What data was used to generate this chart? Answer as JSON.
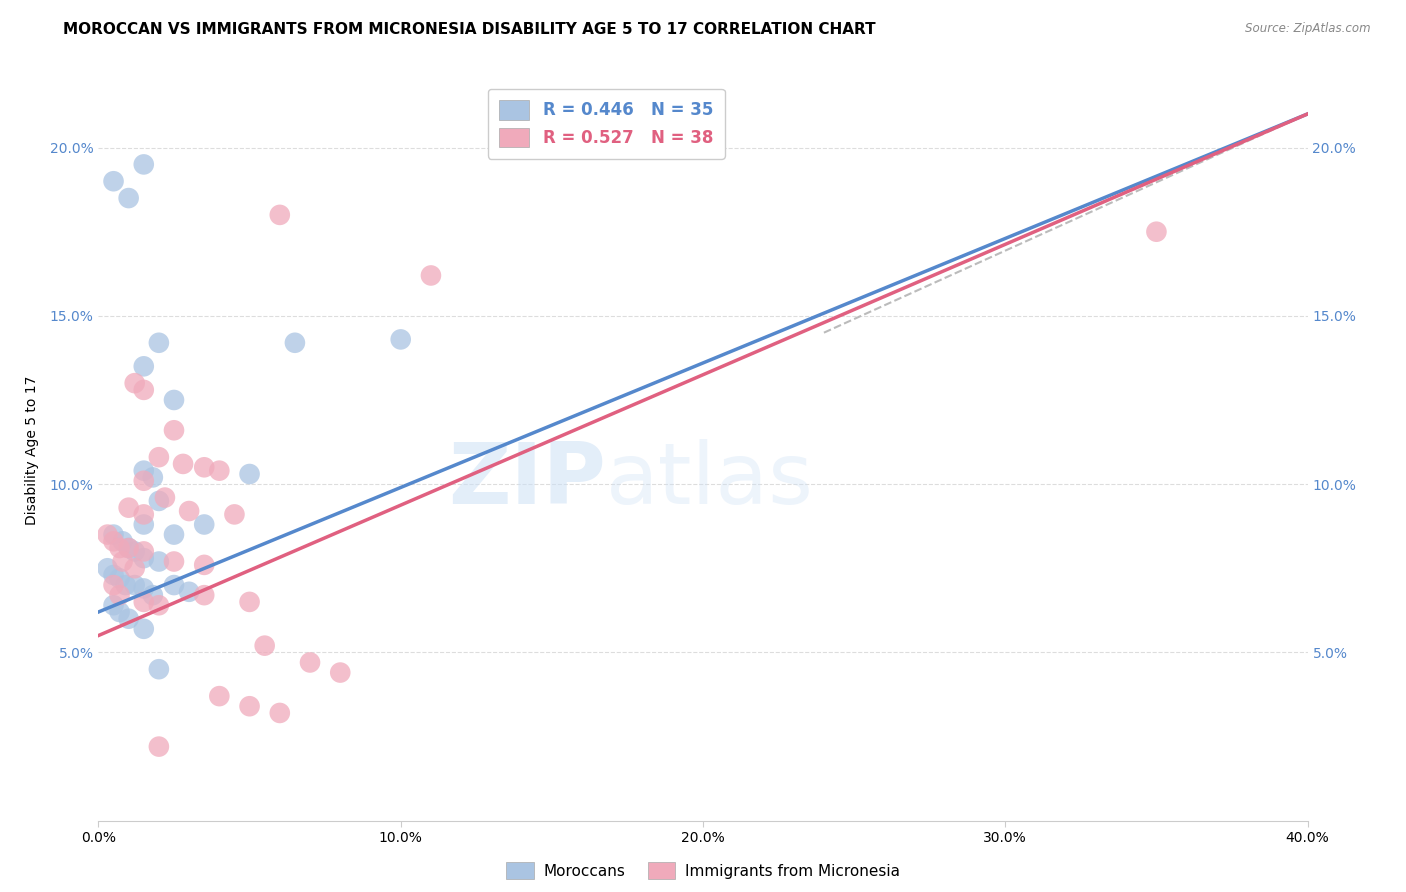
{
  "title": "MOROCCAN VS IMMIGRANTS FROM MICRONESIA DISABILITY AGE 5 TO 17 CORRELATION CHART",
  "source": "Source: ZipAtlas.com",
  "ylabel": "Disability Age 5 to 17",
  "watermark": "ZIPatlas",
  "blue_R": 0.446,
  "blue_N": 35,
  "pink_R": 0.527,
  "pink_N": 38,
  "blue_color": "#aac4e2",
  "pink_color": "#f0aabb",
  "blue_line_color": "#5588cc",
  "pink_line_color": "#e06080",
  "dashed_line_color": "#bbbbbb",
  "blue_line_x0": 0.0,
  "blue_line_y0": 6.2,
  "blue_line_x1": 40.0,
  "blue_line_y1": 21.0,
  "pink_line_x0": 0.0,
  "pink_line_y0": 5.5,
  "pink_line_x1": 40.0,
  "pink_line_y1": 21.0,
  "dash_line_x0": 24.0,
  "dash_line_y0": 14.5,
  "dash_line_x1": 40.0,
  "dash_line_y1": 21.0,
  "blue_points": [
    [
      0.5,
      19.0
    ],
    [
      1.5,
      19.5
    ],
    [
      1.0,
      18.5
    ],
    [
      2.0,
      14.2
    ],
    [
      1.5,
      13.5
    ],
    [
      10.0,
      14.3
    ],
    [
      6.5,
      14.2
    ],
    [
      2.5,
      12.5
    ],
    [
      1.5,
      10.4
    ],
    [
      1.8,
      10.2
    ],
    [
      5.0,
      10.3
    ],
    [
      2.0,
      9.5
    ],
    [
      1.5,
      8.8
    ],
    [
      2.5,
      8.5
    ],
    [
      3.5,
      8.8
    ],
    [
      0.5,
      8.5
    ],
    [
      0.8,
      8.3
    ],
    [
      1.0,
      8.1
    ],
    [
      1.2,
      8.0
    ],
    [
      1.5,
      7.8
    ],
    [
      2.0,
      7.7
    ],
    [
      0.3,
      7.5
    ],
    [
      0.5,
      7.3
    ],
    [
      0.7,
      7.2
    ],
    [
      0.9,
      7.0
    ],
    [
      1.2,
      7.0
    ],
    [
      1.5,
      6.9
    ],
    [
      1.8,
      6.7
    ],
    [
      2.5,
      7.0
    ],
    [
      3.0,
      6.8
    ],
    [
      0.5,
      6.4
    ],
    [
      0.7,
      6.2
    ],
    [
      1.0,
      6.0
    ],
    [
      1.5,
      5.7
    ],
    [
      2.0,
      4.5
    ]
  ],
  "pink_points": [
    [
      6.0,
      18.0
    ],
    [
      35.0,
      17.5
    ],
    [
      11.0,
      16.2
    ],
    [
      1.2,
      13.0
    ],
    [
      1.5,
      12.8
    ],
    [
      2.5,
      11.6
    ],
    [
      2.0,
      10.8
    ],
    [
      2.8,
      10.6
    ],
    [
      3.5,
      10.5
    ],
    [
      4.0,
      10.4
    ],
    [
      1.5,
      10.1
    ],
    [
      2.2,
      9.6
    ],
    [
      1.0,
      9.3
    ],
    [
      1.5,
      9.1
    ],
    [
      3.0,
      9.2
    ],
    [
      4.5,
      9.1
    ],
    [
      0.3,
      8.5
    ],
    [
      0.5,
      8.3
    ],
    [
      0.7,
      8.1
    ],
    [
      1.0,
      8.1
    ],
    [
      1.5,
      8.0
    ],
    [
      0.8,
      7.7
    ],
    [
      1.2,
      7.5
    ],
    [
      2.5,
      7.7
    ],
    [
      3.5,
      7.6
    ],
    [
      0.5,
      7.0
    ],
    [
      0.7,
      6.7
    ],
    [
      1.5,
      6.5
    ],
    [
      2.0,
      6.4
    ],
    [
      3.5,
      6.7
    ],
    [
      5.0,
      6.5
    ],
    [
      5.5,
      5.2
    ],
    [
      7.0,
      4.7
    ],
    [
      8.0,
      4.4
    ],
    [
      4.0,
      3.7
    ],
    [
      5.0,
      3.4
    ],
    [
      6.0,
      3.2
    ],
    [
      2.0,
      2.2
    ]
  ],
  "xlim": [
    0,
    40
  ],
  "ylim": [
    0,
    22
  ],
  "xticks": [
    0,
    10,
    20,
    30,
    40
  ],
  "xticklabels": [
    "0.0%",
    "10.0%",
    "20.0%",
    "30.0%",
    "40.0%"
  ],
  "yticks_left": [
    5,
    10,
    15,
    20
  ],
  "yticklabels_left": [
    "5.0%",
    "10.0%",
    "15.0%",
    "20.0%"
  ],
  "yticks_right": [
    5,
    10,
    15,
    20
  ],
  "yticklabels_right": [
    "5.0%",
    "10.0%",
    "15.0%",
    "20.0%"
  ],
  "grid_color": "#dddddd",
  "background_color": "#ffffff",
  "title_fontsize": 11,
  "axis_fontsize": 10,
  "tick_fontsize": 10
}
